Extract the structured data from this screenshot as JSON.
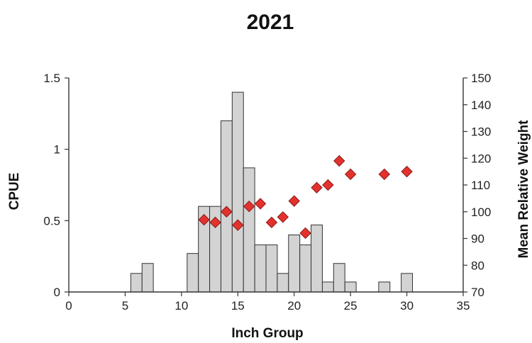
{
  "chart_data": {
    "type": "bar+scatter",
    "title": "2021",
    "xlabel": "Inch Group",
    "ylabel": "CPUE",
    "y2label": "Mean Relative Weight",
    "xlim": [
      0,
      35
    ],
    "ylim": [
      0,
      1.5
    ],
    "y2lim": [
      70,
      150
    ],
    "x_ticks": [
      0,
      5,
      10,
      15,
      20,
      25,
      30,
      35
    ],
    "y_ticks": [
      0,
      0.5,
      1,
      1.5
    ],
    "y_tick_labels": [
      "0",
      "0.5",
      "1",
      "1.5"
    ],
    "y2_ticks": [
      70,
      80,
      90,
      100,
      110,
      120,
      130,
      140,
      150
    ],
    "grid": false,
    "series": [
      {
        "type": "bar",
        "axis": "left",
        "x": [
          6,
          7,
          11,
          12,
          13,
          14,
          15,
          16,
          17,
          18,
          19,
          20,
          21,
          22,
          23,
          24,
          25,
          28,
          30
        ],
        "values": [
          0.13,
          0.2,
          0.27,
          0.6,
          0.6,
          1.2,
          1.4,
          0.87,
          0.33,
          0.33,
          0.13,
          0.4,
          0.33,
          0.47,
          0.07,
          0.2,
          0.07,
          0.07,
          0.13
        ]
      },
      {
        "type": "scatter",
        "axis": "right",
        "x": [
          12,
          13,
          14,
          15,
          16,
          17,
          18,
          19,
          20,
          21,
          22,
          23,
          24,
          25,
          28,
          30
        ],
        "values": [
          97,
          96,
          100,
          95,
          102,
          103,
          96,
          98,
          104,
          92,
          109,
          110,
          119,
          114,
          114,
          115
        ]
      }
    ]
  }
}
